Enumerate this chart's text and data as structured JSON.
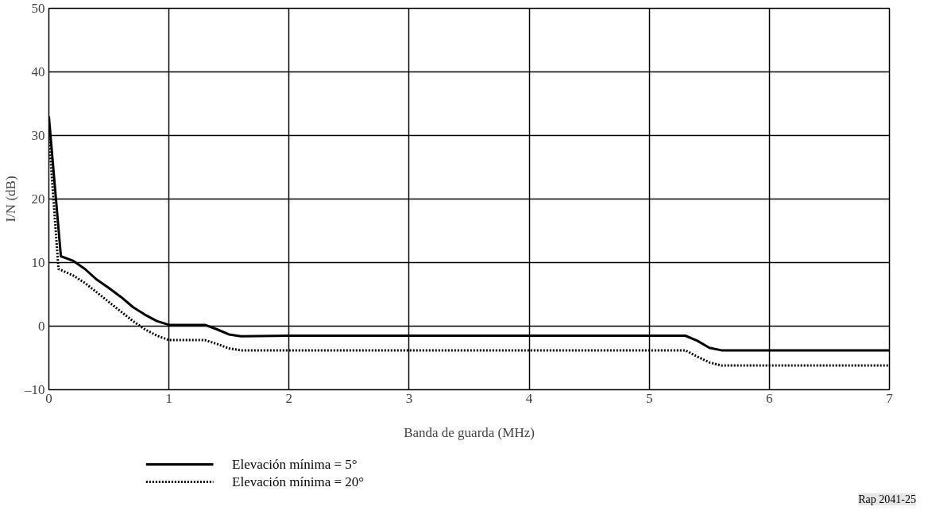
{
  "chart_data": {
    "type": "line",
    "xlabel": "Banda de guarda (MHz)",
    "ylabel": "I/N (dB)",
    "xlim": [
      0,
      7
    ],
    "xticks": [
      0,
      1,
      2,
      3,
      4,
      5,
      6,
      7
    ],
    "ylim": [
      -10,
      50
    ],
    "yticks": [
      {
        "value": -10,
        "label": "–10"
      },
      0,
      10,
      20,
      30,
      40,
      50
    ],
    "grid": true,
    "legend": "bottom left",
    "marker": "none",
    "series": [
      {
        "name": "Elevación mínima = 5°",
        "color": "#000000",
        "line_style": "solid",
        "x": [
          0,
          0.1,
          0.2,
          0.3,
          0.4,
          0.5,
          0.6,
          0.7,
          0.8,
          0.9,
          1.0,
          1.3,
          1.4,
          1.5,
          1.6,
          2,
          3,
          4,
          5,
          5.3,
          5.4,
          5.5,
          5.6,
          6,
          7
        ],
        "values": [
          33,
          11,
          10.3,
          9,
          7.3,
          6,
          4.6,
          3,
          1.8,
          0.8,
          0.2,
          0.2,
          -0.5,
          -1.3,
          -1.6,
          -1.5,
          -1.5,
          -1.5,
          -1.5,
          -1.5,
          -2.3,
          -3.4,
          -3.8,
          -3.8,
          -3.8
        ]
      },
      {
        "name": "Elevación mínima = 20°",
        "color": "#000000",
        "line_style": "dotted",
        "x": [
          0,
          0.08,
          0.2,
          0.3,
          0.4,
          0.5,
          0.6,
          0.7,
          0.8,
          0.9,
          1.0,
          1.3,
          1.4,
          1.5,
          1.6,
          2,
          3,
          4,
          5,
          5.3,
          5.4,
          5.5,
          5.6,
          6,
          7
        ],
        "values": [
          30,
          9,
          8,
          6.8,
          5.3,
          3.8,
          2.3,
          0.8,
          -0.5,
          -1.5,
          -2.2,
          -2.2,
          -2.8,
          -3.5,
          -3.8,
          -3.8,
          -3.8,
          -3.8,
          -3.8,
          -3.8,
          -4.8,
          -5.7,
          -6.2,
          -6.2,
          -6.2
        ]
      }
    ],
    "annotations": [
      "Rap 2041-25"
    ]
  }
}
